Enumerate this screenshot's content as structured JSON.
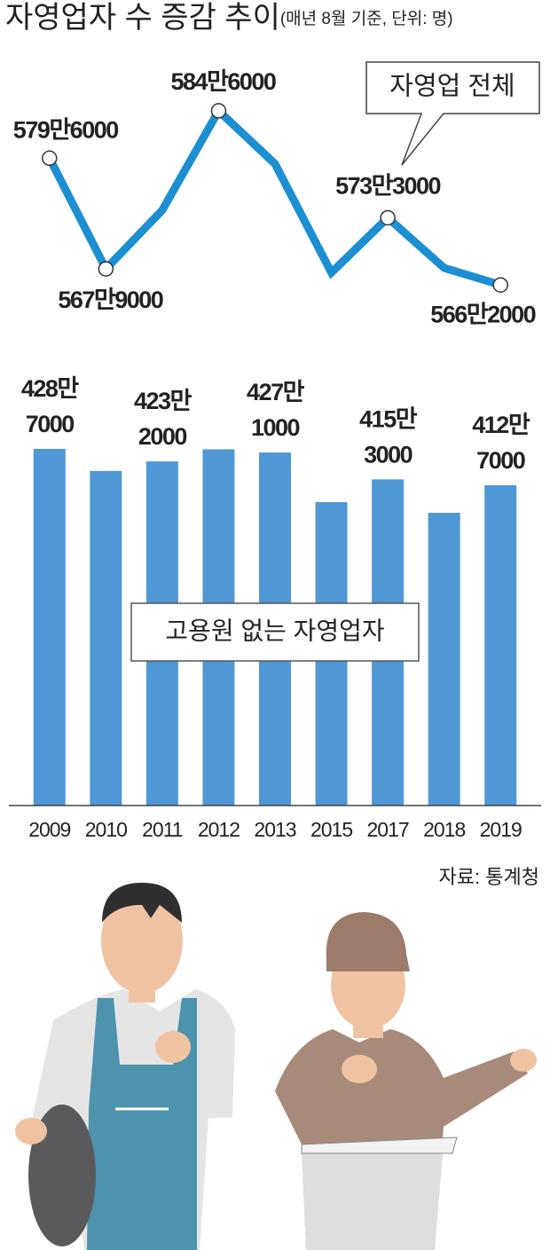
{
  "title": "자영업자 수 증감 추이",
  "subtitle": "(매년 8월 기준, 단위: 명)",
  "source": "자료: 통계청",
  "chart_data": [
    {
      "type": "line",
      "annotation": "자영업 전체",
      "color": "#1b8fd2",
      "values": [
        5796000,
        5679000,
        5741000,
        5846000,
        5790000,
        5675000,
        5733000,
        5680000,
        5662000
      ],
      "value_labels": [
        "579만6000",
        "567만9000",
        null,
        "584만6000",
        null,
        null,
        "573만3000",
        null,
        "566만2000"
      ],
      "ylim": [
        5650000,
        5860000
      ]
    },
    {
      "type": "bar",
      "annotation": "고용원 없는 자영업자",
      "color": "#4f97d5",
      "categories": [
        "2009",
        "2010",
        "2011",
        "2012",
        "2013",
        "2015",
        "2017",
        "2018",
        "2019"
      ],
      "values": [
        4287000,
        4190000,
        4232000,
        4285000,
        4271000,
        4053000,
        4153000,
        4006000,
        4127000
      ],
      "value_labels": [
        [
          "428만",
          "7000"
        ],
        null,
        [
          "423만",
          "2000"
        ],
        null,
        [
          "427만",
          "1000"
        ],
        null,
        [
          "415만",
          "3000"
        ],
        null,
        [
          "412만",
          "7000"
        ]
      ],
      "ylim": [
        2720000,
        4700000
      ]
    }
  ]
}
